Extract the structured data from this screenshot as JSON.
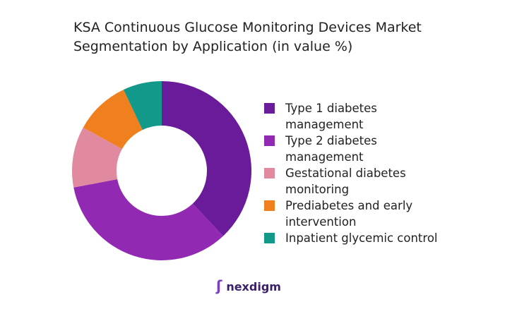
{
  "chart_data": {
    "type": "donut",
    "title": "KSA Continuous Glucose Monitoring Devices Market Segmentation by Application (in value %)",
    "categories": [
      "Type 1 diabetes management",
      "Type 2 diabetes management",
      "Gestational diabetes monitoring",
      "Prediabetes and early intervention",
      "Inpatient glycemic control"
    ],
    "values": [
      38,
      34,
      11,
      10,
      7
    ],
    "colors": [
      "#6a1b9a",
      "#9229b3",
      "#e0899f",
      "#f07f1e",
      "#12998a"
    ]
  },
  "brand": "nexdigm"
}
